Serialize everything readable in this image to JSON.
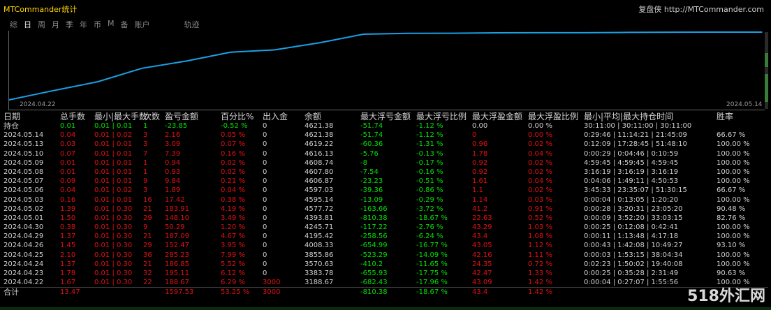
{
  "app": {
    "title": "MTCommander统计",
    "brand": "复盘侠 http://MTCommander.com"
  },
  "tabs": [
    {
      "label": "综",
      "active": false
    },
    {
      "label": "日",
      "active": true
    },
    {
      "label": "周",
      "active": false
    },
    {
      "label": "月",
      "active": false
    },
    {
      "label": "季",
      "active": false
    },
    {
      "label": "年",
      "active": false
    },
    {
      "label": "币",
      "active": false
    },
    {
      "label": "M",
      "active": false
    },
    {
      "label": "备",
      "active": false
    },
    {
      "label": "账户",
      "active": false
    },
    {
      "label": "轨迹",
      "active": false
    }
  ],
  "chart_data": {
    "type": "line",
    "x_start": "2024.04.22",
    "x_end": "2024.05.14",
    "colors": {
      "line": "#1aa0e6",
      "axis": "#666666"
    },
    "series": [
      {
        "values": [
          3188.67,
          3383.78,
          3570.63,
          3855.86,
          4008.33,
          4195.42,
          4245.71,
          4393.81,
          4577.72,
          4595.14,
          4597.03,
          4606.87,
          4607.8,
          4608.74,
          4616.13,
          4619.22,
          4621.38,
          4621.38
        ]
      }
    ]
  },
  "table": {
    "headers": [
      "日期",
      "总手数",
      "最小|最大手数",
      "次数",
      "盈亏金额",
      "百分比%",
      "出入金",
      "余额",
      "最大浮亏金额",
      "最大浮亏比例",
      "最大浮盈金额",
      "最大浮盈比例",
      "最小|平均|最大持仓时间",
      "胜率"
    ],
    "position": {
      "label": "持仓",
      "lots": "0.01",
      "minmax": "0.01 | 0.01",
      "count": "1",
      "pnl": "-23.85",
      "pct": "-0.52 %",
      "deposit": "0",
      "balance": "4621.38",
      "maxloss": "-51.74",
      "maxlosspct": "-1.12 %",
      "maxprofit": "0.00",
      "maxprofitpct": "0.00 %",
      "hold": "30:11:00 | 30:11:00 | 30:11:00",
      "winrate": ""
    },
    "rows": [
      {
        "date": "2024.05.14",
        "lots": "0.04",
        "minmax": "0.01 | 0.02",
        "count": "3",
        "pnl": "2.16",
        "pct": "0.05 %",
        "deposit": "0",
        "balance": "4621.38",
        "maxloss": "-51.74",
        "maxlosspct": "-1.12 %",
        "maxprofit": "0",
        "maxprofitpct": "0.00 %",
        "hold": "0:29:46 | 11:14:21 | 21:45:09",
        "winrate": "66.67 %"
      },
      {
        "date": "2024.05.13",
        "lots": "0.03",
        "minmax": "0.01 | 0.01",
        "count": "3",
        "pnl": "3.09",
        "pct": "0.07 %",
        "deposit": "0",
        "balance": "4619.22",
        "maxloss": "-60.36",
        "maxlosspct": "-1.31 %",
        "maxprofit": "0.96",
        "maxprofitpct": "0.02 %",
        "hold": "0:12:09 | 17:28:45 | 51:48:10",
        "winrate": "100.00 %"
      },
      {
        "date": "2024.05.10",
        "lots": "0.07",
        "minmax": "0.01 | 0.01",
        "count": "7",
        "pnl": "7.39",
        "pct": "0.16 %",
        "deposit": "0",
        "balance": "4616.13",
        "maxloss": "-5.76",
        "maxlosspct": "-0.13 %",
        "maxprofit": "1.78",
        "maxprofitpct": "0.04 %",
        "hold": "0:00:29 | 0:04:46 | 0:10:59",
        "winrate": "100.00 %"
      },
      {
        "date": "2024.05.09",
        "lots": "0.01",
        "minmax": "0.01 | 0.01",
        "count": "1",
        "pnl": "0.94",
        "pct": "0.02 %",
        "deposit": "0",
        "balance": "4608.74",
        "maxloss": "-8",
        "maxlosspct": "-0.17 %",
        "maxprofit": "0.92",
        "maxprofitpct": "0.02 %",
        "hold": "4:59:45 | 4:59:45 | 4:59:45",
        "winrate": "100.00 %"
      },
      {
        "date": "2024.05.08",
        "lots": "0.01",
        "minmax": "0.01 | 0.01",
        "count": "1",
        "pnl": "0.93",
        "pct": "0.02 %",
        "deposit": "0",
        "balance": "4607.80",
        "maxloss": "-7.54",
        "maxlosspct": "-0.16 %",
        "maxprofit": "0.92",
        "maxprofitpct": "0.02 %",
        "hold": "3:16:19 | 3:16:19 | 3:16:19",
        "winrate": "100.00 %"
      },
      {
        "date": "2024.05.07",
        "lots": "0.09",
        "minmax": "0.01 | 0.01",
        "count": "9",
        "pnl": "9.84",
        "pct": "0.21 %",
        "deposit": "0",
        "balance": "4606.87",
        "maxloss": "-23.23",
        "maxlosspct": "-0.51 %",
        "maxprofit": "1.61",
        "maxprofitpct": "0.04 %",
        "hold": "0:04:06 | 1:49:11 | 4:50:53",
        "winrate": "100.00 %"
      },
      {
        "date": "2024.05.06",
        "lots": "0.04",
        "minmax": "0.01 | 0.02",
        "count": "3",
        "pnl": "1.89",
        "pct": "0.04 %",
        "deposit": "0",
        "balance": "4597.03",
        "maxloss": "-39.36",
        "maxlosspct": "-0.86 %",
        "maxprofit": "1.1",
        "maxprofitpct": "0.02 %",
        "hold": "3:45:33 | 23:35:07 | 51:30:15",
        "winrate": "66.67 %"
      },
      {
        "date": "2024.05.03",
        "lots": "0.16",
        "minmax": "0.01 | 0.01",
        "count": "16",
        "pnl": "17.42",
        "pct": "0.38 %",
        "deposit": "0",
        "balance": "4595.14",
        "maxloss": "-13.09",
        "maxlosspct": "-0.29 %",
        "maxprofit": "1.14",
        "maxprofitpct": "0.03 %",
        "hold": "0:00:04 | 0:13:05 | 1:20:20",
        "winrate": "100.00 %"
      },
      {
        "date": "2024.05.02",
        "lots": "1.39",
        "minmax": "0.01 | 0.30",
        "count": "21",
        "pnl": "183.91",
        "pct": "4.19 %",
        "deposit": "0",
        "balance": "4577.72",
        "maxloss": "-163.66",
        "maxlosspct": "-3.72 %",
        "maxprofit": "41.2",
        "maxprofitpct": "0.91 %",
        "hold": "0:00:28 | 3:20:31 | 23:05:20",
        "winrate": "90.48 %"
      },
      {
        "date": "2024.05.01",
        "lots": "1.50",
        "minmax": "0.01 | 0.30",
        "count": "29",
        "pnl": "148.10",
        "pct": "3.49 %",
        "deposit": "0",
        "balance": "4393.81",
        "maxloss": "-810.38",
        "maxlosspct": "-18.67 %",
        "maxprofit": "22.63",
        "maxprofitpct": "0.52 %",
        "hold": "0:00:09 | 3:52:20 | 33:03:15",
        "winrate": "82.76 %"
      },
      {
        "date": "2024.04.30",
        "lots": "0.38",
        "minmax": "0.01 | 0.30",
        "count": "9",
        "pnl": "50.29",
        "pct": "1.20 %",
        "deposit": "0",
        "balance": "4245.71",
        "maxloss": "-117.22",
        "maxlosspct": "-2.76 %",
        "maxprofit": "43.29",
        "maxprofitpct": "1.03 %",
        "hold": "0:00:25 | 0:12:08 | 0:42:41",
        "winrate": "100.00 %"
      },
      {
        "date": "2024.04.29",
        "lots": "1.37",
        "minmax": "0.01 | 0.30",
        "count": "21",
        "pnl": "187.09",
        "pct": "4.67 %",
        "deposit": "0",
        "balance": "4195.42",
        "maxloss": "-258.56",
        "maxlosspct": "-6.24 %",
        "maxprofit": "43.4",
        "maxprofitpct": "1.08 %",
        "hold": "0:00:11 | 1:13:48 | 4:17:18",
        "winrate": "100.00 %"
      },
      {
        "date": "2024.04.26",
        "lots": "1.45",
        "minmax": "0.01 | 0.30",
        "count": "29",
        "pnl": "152.47",
        "pct": "3.95 %",
        "deposit": "0",
        "balance": "4008.33",
        "maxloss": "-654.99",
        "maxlosspct": "-16.77 %",
        "maxprofit": "43.05",
        "maxprofitpct": "1.12 %",
        "hold": "0:00:43 | 1:42:08 | 10:49:27",
        "winrate": "93.10 %"
      },
      {
        "date": "2024.04.25",
        "lots": "2.10",
        "minmax": "0.01 | 0.30",
        "count": "36",
        "pnl": "285.23",
        "pct": "7.99 %",
        "deposit": "0",
        "balance": "3855.86",
        "maxloss": "-523.29",
        "maxlosspct": "-14.09 %",
        "maxprofit": "42.16",
        "maxprofitpct": "1.11 %",
        "hold": "0:00:03 | 1:53:15 | 38:04:34",
        "winrate": "100.00 %"
      },
      {
        "date": "2024.04.24",
        "lots": "1.37",
        "minmax": "0.01 | 0.30",
        "count": "21",
        "pnl": "186.85",
        "pct": "5.52 %",
        "deposit": "0",
        "balance": "3570.63",
        "maxloss": "-410.2",
        "maxlosspct": "-11.65 %",
        "maxprofit": "24.35",
        "maxprofitpct": "0.72 %",
        "hold": "0:02:23 | 1:50:02 | 19:40:08",
        "winrate": "100.00 %"
      },
      {
        "date": "2024.04.23",
        "lots": "1.78",
        "minmax": "0.01 | 0.30",
        "count": "32",
        "pnl": "195.11",
        "pct": "6.12 %",
        "deposit": "0",
        "balance": "3383.78",
        "maxloss": "-655.93",
        "maxlosspct": "-17.75 %",
        "maxprofit": "42.47",
        "maxprofitpct": "1.33 %",
        "hold": "0:00:25 | 0:35:28 | 2:31:49",
        "winrate": "90.63 %"
      },
      {
        "date": "2024.04.22",
        "lots": "1.67",
        "minmax": "0.01 | 0.30",
        "count": "22",
        "pnl": "188.67",
        "pct": "6.29 %",
        "deposit": "3000",
        "balance": "3188.67",
        "maxloss": "-682.43",
        "maxlosspct": "-17.96 %",
        "maxprofit": "43.09",
        "maxprofitpct": "1.42 %",
        "hold": "0:00:04 | 0:27:07 | 1:55:56",
        "winrate": "100.00 %"
      }
    ],
    "total": {
      "label": "合计",
      "lots": "13.47",
      "pnl": "1597.53",
      "pct": "53.25 %",
      "deposit": "3000",
      "maxloss": "-810.38",
      "maxlosspct": "-18.67 %",
      "maxprofit": "43.4",
      "maxprofitpct": "1.42 %"
    }
  },
  "watermark": "518外汇网"
}
